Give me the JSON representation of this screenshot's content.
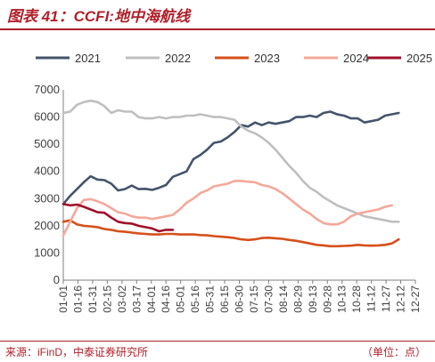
{
  "header": {
    "title": "图表 41：CCFI:地中海航线"
  },
  "footer": {
    "source": "来源：iFinD，中泰证券研究所",
    "unit": "（单位：点）"
  },
  "chart_data": {
    "type": "line",
    "title": "CCFI:地中海航线",
    "xlabel": "",
    "ylabel": "",
    "ylim": [
      0,
      7000
    ],
    "yticks": [
      "0",
      "1000",
      "2000",
      "3000",
      "4000",
      "5000",
      "6000",
      "7000"
    ],
    "xtick_labels": [
      "01-01",
      "01-16",
      "01-31",
      "02-15",
      "03-02",
      "03-17",
      "04-01",
      "04-16",
      "05-01",
      "05-16",
      "05-31",
      "06-15",
      "06-30",
      "07-15",
      "07-30",
      "08-14",
      "08-29",
      "09-13",
      "09-28",
      "10-13",
      "10-28",
      "11-12",
      "11-27",
      "12-12",
      "12-27"
    ],
    "grid": false,
    "legend_position": "top",
    "series": [
      {
        "name": "2021",
        "color": "#44546a",
        "points": [
          [
            0,
            2800
          ],
          [
            7,
            3100
          ],
          [
            14,
            3350
          ],
          [
            21,
            3600
          ],
          [
            28,
            3820
          ],
          [
            35,
            3700
          ],
          [
            42,
            3680
          ],
          [
            49,
            3550
          ],
          [
            56,
            3300
          ],
          [
            63,
            3350
          ],
          [
            70,
            3480
          ],
          [
            77,
            3350
          ],
          [
            84,
            3360
          ],
          [
            91,
            3320
          ],
          [
            98,
            3400
          ],
          [
            105,
            3500
          ],
          [
            112,
            3800
          ],
          [
            119,
            3900
          ],
          [
            126,
            4000
          ],
          [
            133,
            4450
          ],
          [
            140,
            4600
          ],
          [
            147,
            4800
          ],
          [
            154,
            5050
          ],
          [
            161,
            5100
          ],
          [
            168,
            5250
          ],
          [
            175,
            5450
          ],
          [
            182,
            5700
          ],
          [
            189,
            5650
          ],
          [
            196,
            5800
          ],
          [
            203,
            5700
          ],
          [
            210,
            5800
          ],
          [
            217,
            5750
          ],
          [
            224,
            5800
          ],
          [
            231,
            5850
          ],
          [
            238,
            6000
          ],
          [
            245,
            6000
          ],
          [
            252,
            6050
          ],
          [
            259,
            6000
          ],
          [
            266,
            6150
          ],
          [
            273,
            6200
          ],
          [
            280,
            6100
          ],
          [
            287,
            6050
          ],
          [
            294,
            5950
          ],
          [
            301,
            5950
          ],
          [
            308,
            5800
          ],
          [
            315,
            5850
          ],
          [
            322,
            5900
          ],
          [
            329,
            6050
          ],
          [
            336,
            6100
          ],
          [
            343,
            6150
          ]
        ]
      },
      {
        "name": "2022",
        "color": "#bfbfbf",
        "points": [
          [
            0,
            6150
          ],
          [
            7,
            6200
          ],
          [
            14,
            6450
          ],
          [
            21,
            6550
          ],
          [
            28,
            6600
          ],
          [
            35,
            6550
          ],
          [
            42,
            6400
          ],
          [
            49,
            6150
          ],
          [
            56,
            6250
          ],
          [
            63,
            6200
          ],
          [
            70,
            6200
          ],
          [
            77,
            6000
          ],
          [
            84,
            5950
          ],
          [
            91,
            5950
          ],
          [
            98,
            6000
          ],
          [
            105,
            5950
          ],
          [
            112,
            6000
          ],
          [
            119,
            6000
          ],
          [
            126,
            6050
          ],
          [
            133,
            6050
          ],
          [
            140,
            6100
          ],
          [
            147,
            6050
          ],
          [
            154,
            6000
          ],
          [
            161,
            6000
          ],
          [
            168,
            5950
          ],
          [
            175,
            5900
          ],
          [
            182,
            5650
          ],
          [
            189,
            5500
          ],
          [
            196,
            5400
          ],
          [
            203,
            5250
          ],
          [
            210,
            5050
          ],
          [
            217,
            4800
          ],
          [
            224,
            4500
          ],
          [
            231,
            4200
          ],
          [
            238,
            3950
          ],
          [
            245,
            3650
          ],
          [
            252,
            3400
          ],
          [
            259,
            3250
          ],
          [
            266,
            3050
          ],
          [
            273,
            2900
          ],
          [
            280,
            2750
          ],
          [
            287,
            2650
          ],
          [
            294,
            2550
          ],
          [
            301,
            2450
          ],
          [
            308,
            2350
          ],
          [
            315,
            2300
          ],
          [
            322,
            2250
          ],
          [
            329,
            2200
          ],
          [
            336,
            2150
          ],
          [
            343,
            2150
          ]
        ]
      },
      {
        "name": "2023",
        "color": "#d5501b",
        "points": [
          [
            0,
            2150
          ],
          [
            7,
            2200
          ],
          [
            14,
            2050
          ],
          [
            21,
            2000
          ],
          [
            28,
            1980
          ],
          [
            35,
            1950
          ],
          [
            42,
            1880
          ],
          [
            49,
            1850
          ],
          [
            56,
            1800
          ],
          [
            63,
            1780
          ],
          [
            70,
            1750
          ],
          [
            77,
            1720
          ],
          [
            84,
            1700
          ],
          [
            91,
            1680
          ],
          [
            98,
            1680
          ],
          [
            105,
            1700
          ],
          [
            112,
            1700
          ],
          [
            119,
            1680
          ],
          [
            126,
            1680
          ],
          [
            133,
            1680
          ],
          [
            140,
            1660
          ],
          [
            147,
            1650
          ],
          [
            154,
            1620
          ],
          [
            161,
            1600
          ],
          [
            168,
            1580
          ],
          [
            175,
            1550
          ],
          [
            182,
            1500
          ],
          [
            189,
            1480
          ],
          [
            196,
            1500
          ],
          [
            203,
            1550
          ],
          [
            210,
            1560
          ],
          [
            217,
            1540
          ],
          [
            224,
            1520
          ],
          [
            231,
            1480
          ],
          [
            238,
            1450
          ],
          [
            245,
            1400
          ],
          [
            252,
            1350
          ],
          [
            259,
            1300
          ],
          [
            266,
            1280
          ],
          [
            273,
            1250
          ],
          [
            280,
            1250
          ],
          [
            287,
            1260
          ],
          [
            294,
            1270
          ],
          [
            301,
            1300
          ],
          [
            308,
            1280
          ],
          [
            315,
            1270
          ],
          [
            322,
            1280
          ],
          [
            329,
            1300
          ],
          [
            336,
            1350
          ],
          [
            343,
            1500
          ]
        ]
      },
      {
        "name": "2024",
        "color": "#f4a89a",
        "points": [
          [
            0,
            1650
          ],
          [
            7,
            2150
          ],
          [
            14,
            2650
          ],
          [
            21,
            2950
          ],
          [
            28,
            2980
          ],
          [
            35,
            2900
          ],
          [
            42,
            2800
          ],
          [
            49,
            2650
          ],
          [
            56,
            2500
          ],
          [
            63,
            2450
          ],
          [
            70,
            2350
          ],
          [
            77,
            2300
          ],
          [
            84,
            2300
          ],
          [
            91,
            2250
          ],
          [
            98,
            2300
          ],
          [
            105,
            2350
          ],
          [
            112,
            2400
          ],
          [
            119,
            2600
          ],
          [
            126,
            2850
          ],
          [
            133,
            3000
          ],
          [
            140,
            3200
          ],
          [
            147,
            3300
          ],
          [
            154,
            3450
          ],
          [
            161,
            3500
          ],
          [
            168,
            3550
          ],
          [
            175,
            3650
          ],
          [
            182,
            3650
          ],
          [
            189,
            3620
          ],
          [
            196,
            3600
          ],
          [
            203,
            3500
          ],
          [
            210,
            3450
          ],
          [
            217,
            3350
          ],
          [
            224,
            3200
          ],
          [
            231,
            3000
          ],
          [
            238,
            2800
          ],
          [
            245,
            2600
          ],
          [
            252,
            2450
          ],
          [
            259,
            2250
          ],
          [
            266,
            2100
          ],
          [
            273,
            2050
          ],
          [
            280,
            2050
          ],
          [
            287,
            2150
          ],
          [
            294,
            2350
          ],
          [
            301,
            2450
          ],
          [
            308,
            2500
          ],
          [
            315,
            2550
          ],
          [
            322,
            2600
          ],
          [
            329,
            2700
          ],
          [
            336,
            2750
          ]
        ]
      },
      {
        "name": "2025",
        "color": "#a0102a",
        "points": [
          [
            0,
            2800
          ],
          [
            7,
            2750
          ],
          [
            14,
            2780
          ],
          [
            21,
            2700
          ],
          [
            28,
            2600
          ],
          [
            35,
            2500
          ],
          [
            42,
            2480
          ],
          [
            49,
            2300
          ],
          [
            56,
            2150
          ],
          [
            63,
            2100
          ],
          [
            70,
            2080
          ],
          [
            77,
            2000
          ],
          [
            84,
            1950
          ],
          [
            91,
            1900
          ],
          [
            98,
            1800
          ],
          [
            105,
            1850
          ],
          [
            112,
            1850
          ]
        ]
      }
    ]
  }
}
